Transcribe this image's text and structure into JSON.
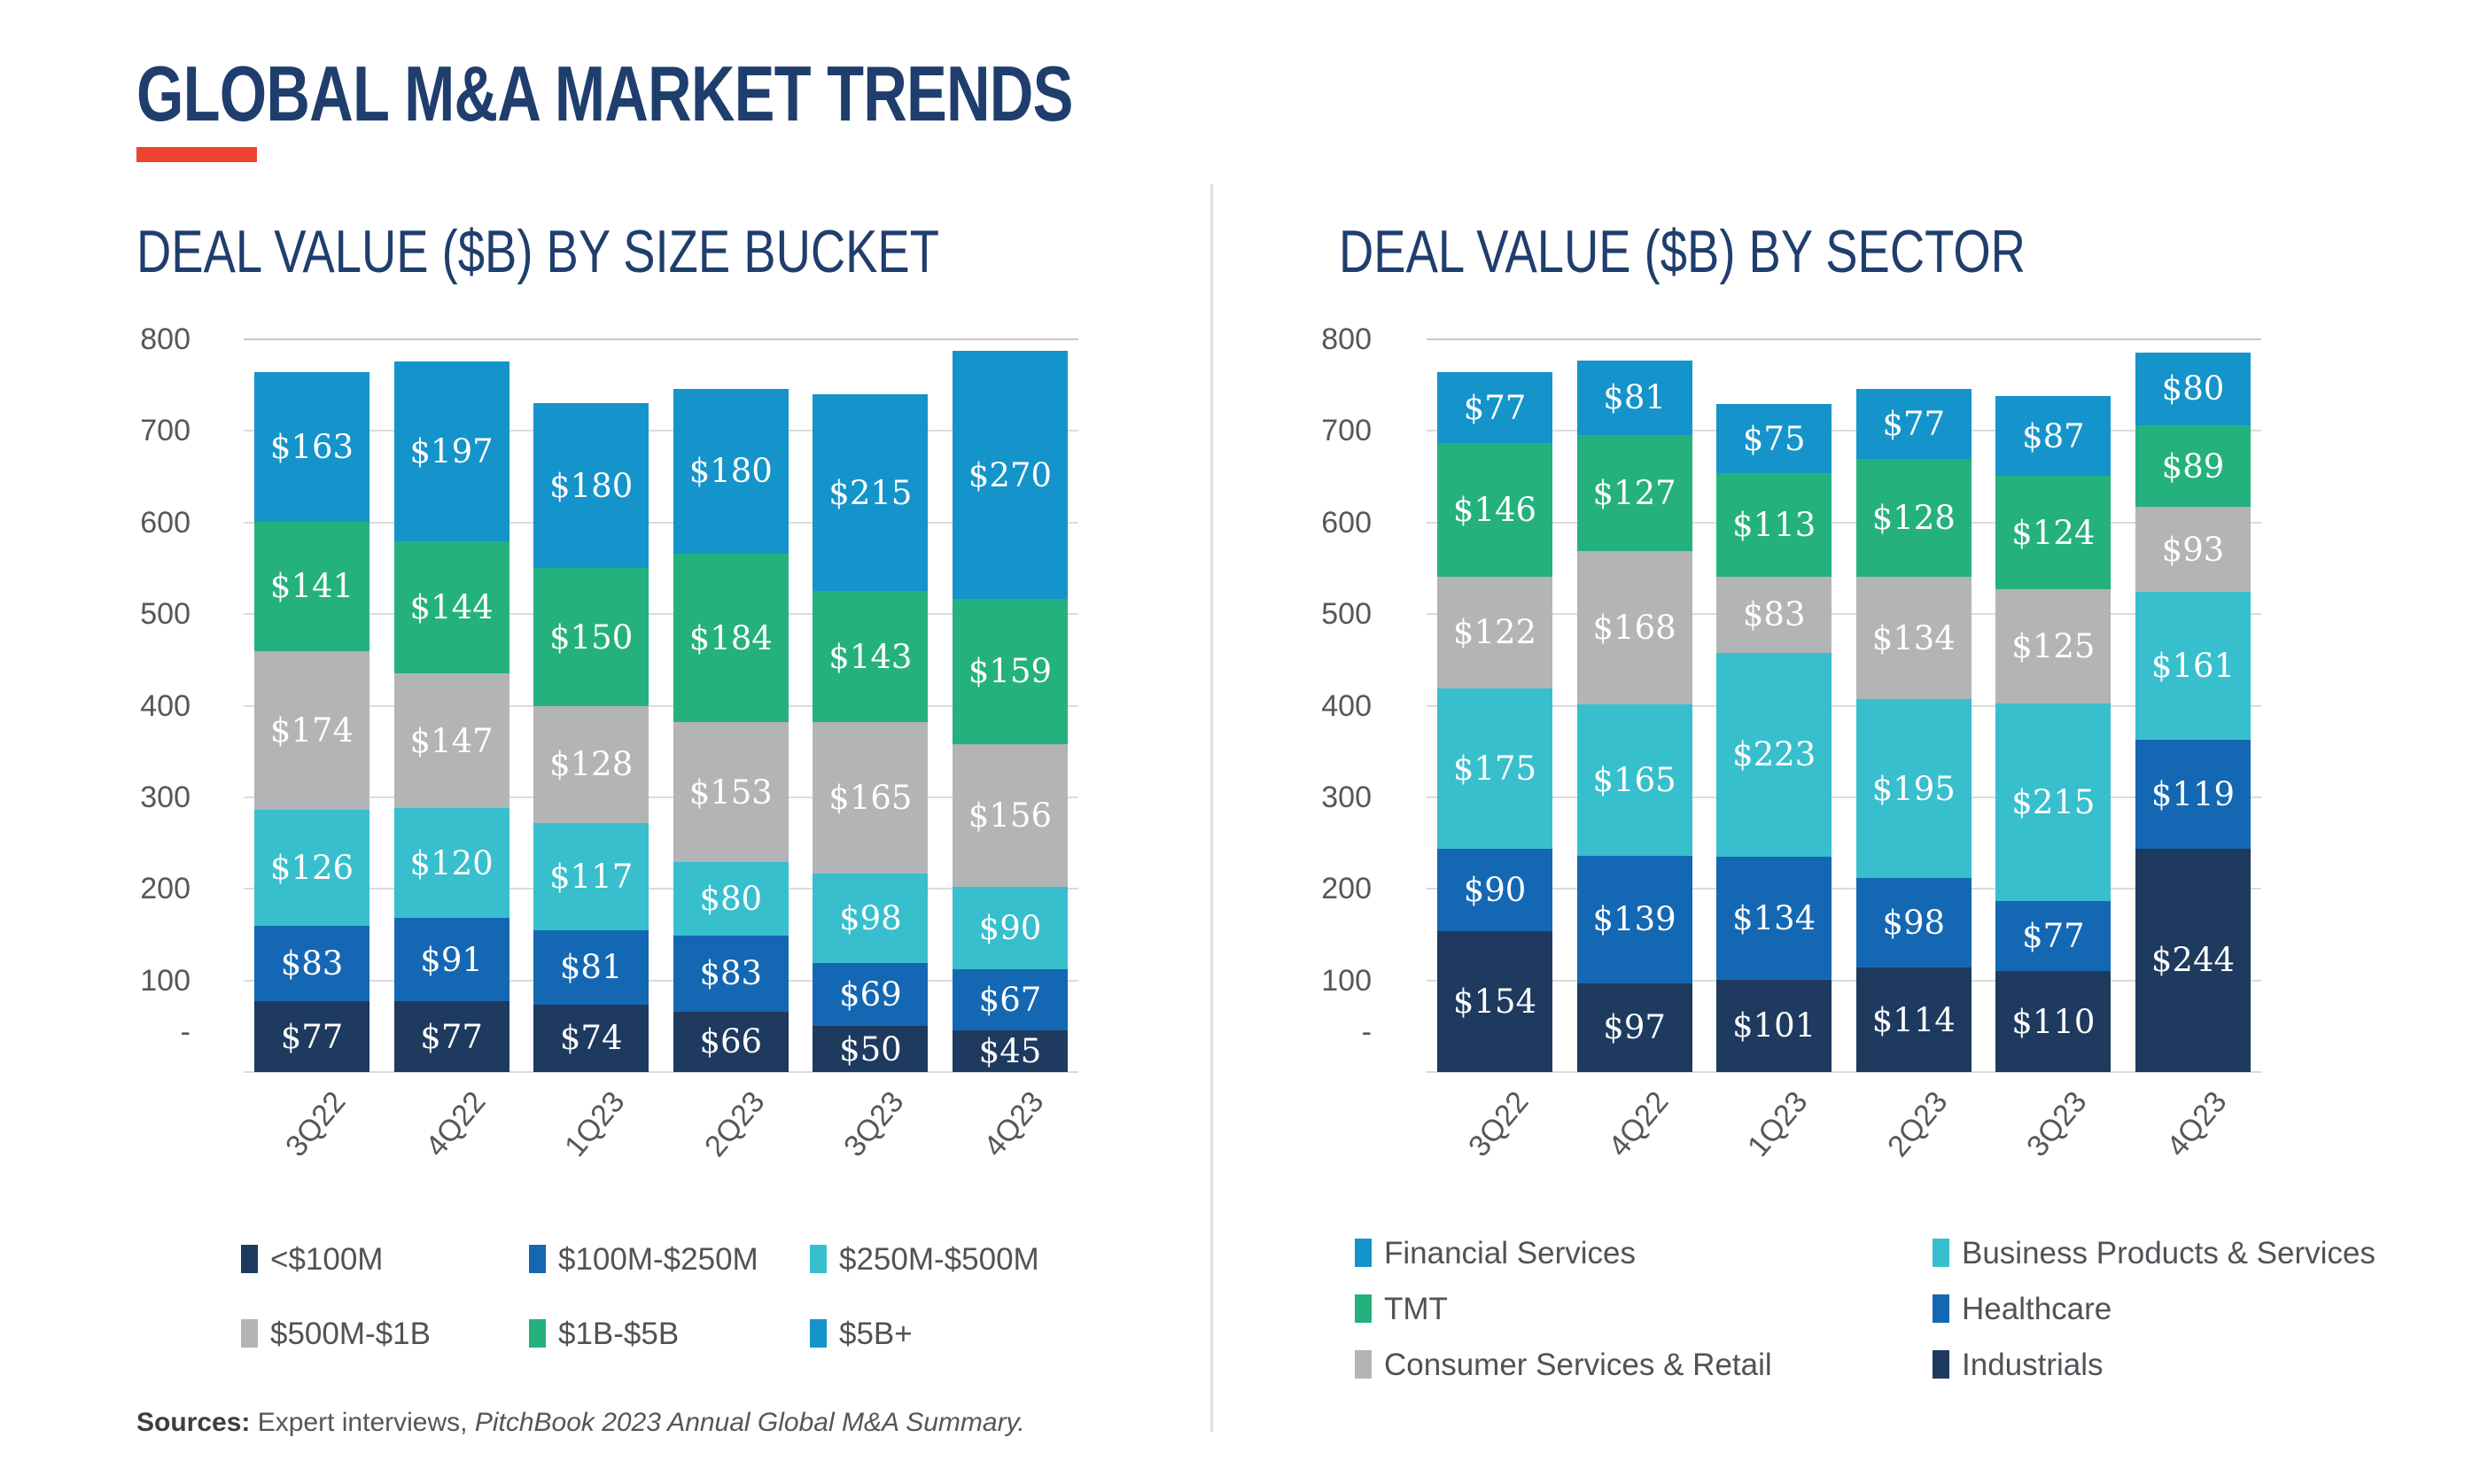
{
  "header": {
    "title": "GLOBAL M&A MARKET TRENDS"
  },
  "accent_color": "#EE4331",
  "divider_color": "#E0E0E0",
  "grid_color": "#DBDBDB",
  "grid_top_color": "#C6C8CA",
  "footer": {
    "sources_label": "Sources:",
    "sources_regular": " Expert interviews, ",
    "sources_italic": "PitchBook 2023 Annual Global M&A Summary."
  },
  "chart_data": [
    {
      "type": "bar",
      "stacked": true,
      "title": "DEAL VALUE ($B) BY SIZE BUCKET",
      "xlabel": "",
      "ylabel": "Deal value ($B)",
      "ylim": [
        0,
        800
      ],
      "ytick_step": 100,
      "ytick_labels_top_to_bottom": [
        "800",
        "700",
        "600",
        "500",
        "400",
        "300",
        "200",
        "100",
        "-"
      ],
      "grid": true,
      "value_prefix": "$",
      "legend_position": "bottom",
      "categories": [
        "3Q22",
        "4Q22",
        "1Q23",
        "2Q23",
        "3Q23",
        "4Q23"
      ],
      "series_bottom_to_top": [
        {
          "name": "<$100M",
          "color": "#1E3A5F",
          "values": [
            77,
            77,
            74,
            66,
            50,
            45
          ]
        },
        {
          "name": "$100M-$250M",
          "color": "#1468B3",
          "values": [
            83,
            91,
            81,
            83,
            69,
            67
          ]
        },
        {
          "name": "$250M-$500M",
          "color": "#38BFCD",
          "values": [
            126,
            120,
            117,
            80,
            98,
            90
          ]
        },
        {
          "name": "$500M-$1B",
          "color": "#B2B4B6",
          "values": [
            174,
            147,
            128,
            153,
            165,
            156
          ]
        },
        {
          "name": "$1B-$5B",
          "color": "#25B17E",
          "values": [
            141,
            144,
            150,
            184,
            143,
            159
          ]
        },
        {
          "name": "$5B+",
          "color": "#1494CA",
          "values": [
            163,
            197,
            180,
            180,
            215,
            270
          ]
        }
      ],
      "legend_items_row_major": [
        "<$100M",
        "$100M-$250M",
        "$250M-$500M",
        "$500M-$1B",
        "$1B-$5B",
        "$5B+"
      ]
    },
    {
      "type": "bar",
      "stacked": true,
      "title": "DEAL VALUE ($B) BY SECTOR",
      "xlabel": "",
      "ylabel": "Deal value ($B)",
      "ylim": [
        0,
        800
      ],
      "ytick_step": 100,
      "ytick_labels_top_to_bottom": [
        "800",
        "700",
        "600",
        "500",
        "400",
        "300",
        "200",
        "100",
        "-"
      ],
      "grid": true,
      "value_prefix": "$",
      "legend_position": "bottom",
      "categories": [
        "3Q22",
        "4Q22",
        "1Q23",
        "2Q23",
        "3Q23",
        "4Q23"
      ],
      "series_bottom_to_top": [
        {
          "name": "Industrials",
          "color": "#1E3A5F",
          "values": [
            154,
            97,
            101,
            114,
            110,
            244
          ]
        },
        {
          "name": "Healthcare",
          "color": "#1468B3",
          "values": [
            90,
            139,
            134,
            98,
            77,
            119
          ]
        },
        {
          "name": "Business Products & Services",
          "color": "#38BFCD",
          "values": [
            175,
            165,
            223,
            195,
            215,
            161
          ]
        },
        {
          "name": "Consumer Services & Retail",
          "color": "#B2B4B6",
          "values": [
            122,
            168,
            83,
            134,
            125,
            93
          ]
        },
        {
          "name": "TMT",
          "color": "#25B17E",
          "values": [
            146,
            127,
            113,
            128,
            124,
            89
          ]
        },
        {
          "name": "Financial Services",
          "color": "#1494CA",
          "values": [
            77,
            81,
            75,
            77,
            87,
            80
          ]
        }
      ],
      "legend_items_row_major": [
        "Financial Services",
        "Business Products & Services",
        "TMT",
        "Healthcare",
        "Consumer Services & Retail",
        "Industrials"
      ]
    }
  ]
}
